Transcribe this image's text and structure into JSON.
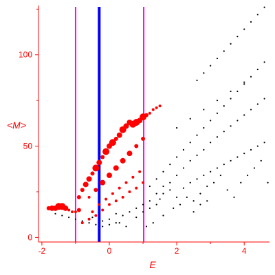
{
  "chart_data": {
    "type": "scatter",
    "title": "",
    "xlabel": "E",
    "ylabel": "<M>",
    "xlim": [
      -2.1,
      4.75
    ],
    "ylim": [
      -2.5,
      127
    ],
    "x_ticks": [
      -2,
      0,
      2,
      4
    ],
    "x_tick_labels": [
      "-2",
      "0",
      "2",
      "4"
    ],
    "y_ticks": [
      0,
      50,
      100
    ],
    "y_tick_labels": [
      "0",
      "50",
      "100"
    ],
    "axis_color": "#ff0000",
    "grid": false,
    "legend": "none",
    "vertical_lines": [
      {
        "x": -1.0,
        "color": "#ff00ff"
      },
      {
        "x": -0.3,
        "color": "#0000ff",
        "thick": true
      },
      {
        "x": 1.02,
        "color": "#ff00ff"
      }
    ],
    "series": [
      {
        "color": "#000000",
        "points": [
          [
            -0.5,
            11
          ],
          [
            -0.2,
            9
          ],
          [
            0.0,
            10
          ],
          [
            0.2,
            13
          ],
          [
            0.3,
            8
          ],
          [
            0.5,
            6
          ],
          [
            0.8,
            11
          ],
          [
            1.0,
            14
          ],
          [
            1.2,
            16
          ],
          [
            1.4,
            18
          ],
          [
            1.5,
            21
          ],
          [
            1.6,
            24
          ],
          [
            1.8,
            26
          ],
          [
            2.0,
            22
          ],
          [
            2.2,
            27
          ],
          [
            2.4,
            30
          ],
          [
            2.6,
            32
          ],
          [
            2.8,
            34
          ],
          [
            3.0,
            36
          ],
          [
            3.2,
            38
          ],
          [
            3.4,
            40
          ],
          [
            3.6,
            42
          ],
          [
            3.8,
            44
          ],
          [
            4.0,
            46
          ],
          [
            4.2,
            48
          ],
          [
            4.4,
            50
          ],
          [
            4.6,
            52
          ],
          [
            1.0,
            18
          ],
          [
            1.2,
            20
          ],
          [
            1.4,
            24
          ],
          [
            1.6,
            28
          ],
          [
            1.8,
            30
          ],
          [
            2.0,
            34
          ],
          [
            2.2,
            38
          ],
          [
            2.4,
            42
          ],
          [
            2.6,
            45
          ],
          [
            2.8,
            48
          ],
          [
            3.0,
            52
          ],
          [
            3.2,
            55
          ],
          [
            3.4,
            58
          ],
          [
            3.6,
            61
          ],
          [
            3.8,
            64
          ],
          [
            4.0,
            67
          ],
          [
            4.2,
            70
          ],
          [
            4.4,
            73
          ],
          [
            4.6,
            76
          ],
          [
            1.2,
            28
          ],
          [
            1.4,
            32
          ],
          [
            1.6,
            36
          ],
          [
            1.8,
            40
          ],
          [
            2.0,
            44
          ],
          [
            2.2,
            48
          ],
          [
            2.4,
            52
          ],
          [
            2.6,
            56
          ],
          [
            2.8,
            60
          ],
          [
            3.0,
            64
          ],
          [
            3.2,
            68
          ],
          [
            3.4,
            72
          ],
          [
            3.6,
            76
          ],
          [
            3.8,
            80
          ],
          [
            4.0,
            84
          ],
          [
            4.2,
            88
          ],
          [
            4.4,
            92
          ],
          [
            4.6,
            96
          ],
          [
            2.6,
            86
          ],
          [
            2.8,
            90
          ],
          [
            3.0,
            94
          ],
          [
            3.2,
            98
          ],
          [
            3.4,
            102
          ],
          [
            3.6,
            106
          ],
          [
            3.8,
            110
          ],
          [
            4.0,
            114
          ],
          [
            4.2,
            118
          ],
          [
            4.4,
            122
          ],
          [
            4.6,
            126
          ],
          [
            2.0,
            60
          ],
          [
            2.4,
            65
          ],
          [
            2.8,
            70
          ],
          [
            3.2,
            75
          ],
          [
            3.6,
            80
          ],
          [
            4.0,
            85
          ],
          [
            2.5,
            20
          ],
          [
            2.7,
            24
          ],
          [
            2.9,
            28
          ],
          [
            3.1,
            30
          ],
          [
            3.3,
            34
          ],
          [
            3.5,
            26
          ],
          [
            3.7,
            22
          ],
          [
            3.9,
            30
          ],
          [
            4.1,
            34
          ],
          [
            4.3,
            38
          ],
          [
            4.5,
            42
          ],
          [
            4.7,
            30
          ],
          [
            1.1,
            6
          ],
          [
            1.3,
            8
          ],
          [
            1.6,
            12
          ],
          [
            1.9,
            16
          ],
          [
            2.1,
            18
          ],
          [
            2.3,
            22
          ],
          [
            2.5,
            14
          ],
          [
            2.7,
            18
          ],
          [
            2.9,
            20
          ],
          [
            -1.6,
            13
          ],
          [
            -1.4,
            12
          ],
          [
            -1.2,
            11
          ],
          [
            -1.0,
            10
          ],
          [
            -0.8,
            9
          ],
          [
            -0.6,
            8
          ],
          [
            -0.4,
            7
          ],
          [
            -0.2,
            6
          ],
          [
            0.0,
            7
          ],
          [
            0.2,
            8
          ],
          [
            0.4,
            12
          ],
          [
            0.6,
            14
          ],
          [
            0.8,
            16
          ]
        ]
      },
      {
        "color": "#ff0000",
        "points": [
          [
            -1.8,
            16,
            3
          ],
          [
            -1.7,
            16,
            4
          ],
          [
            -1.6,
            16,
            4
          ],
          [
            -1.5,
            17,
            5
          ],
          [
            -1.4,
            17,
            5
          ],
          [
            -1.3,
            16,
            4
          ],
          [
            -1.2,
            15,
            2
          ],
          [
            -1.1,
            14,
            2
          ],
          [
            -1.0,
            14,
            2
          ],
          [
            -0.9,
            15,
            3
          ],
          [
            -0.9,
            22,
            3
          ],
          [
            -0.8,
            26,
            3
          ],
          [
            -0.7,
            29,
            4
          ],
          [
            -0.6,
            32,
            4
          ],
          [
            -0.5,
            35,
            3
          ],
          [
            -0.4,
            38,
            5
          ],
          [
            -0.3,
            41,
            4
          ],
          [
            -0.2,
            44,
            3
          ],
          [
            -0.1,
            47,
            5
          ],
          [
            0.0,
            50,
            4
          ],
          [
            0.1,
            52,
            5
          ],
          [
            0.2,
            54,
            3
          ],
          [
            0.3,
            56,
            4
          ],
          [
            0.4,
            59,
            5
          ],
          [
            0.5,
            61,
            4
          ],
          [
            0.6,
            63,
            4
          ],
          [
            0.7,
            62,
            5
          ],
          [
            0.8,
            63,
            5
          ],
          [
            0.9,
            64,
            4
          ],
          [
            1.0,
            66,
            5
          ],
          [
            1.1,
            67,
            3
          ],
          [
            1.2,
            68,
            2
          ],
          [
            1.3,
            70,
            2
          ],
          [
            1.4,
            71,
            2
          ],
          [
            1.5,
            72,
            2
          ],
          [
            -0.6,
            22,
            2
          ],
          [
            -0.4,
            26,
            3
          ],
          [
            -0.2,
            30,
            4
          ],
          [
            0.0,
            34,
            4
          ],
          [
            0.2,
            38,
            4
          ],
          [
            0.4,
            42,
            4
          ],
          [
            0.6,
            46,
            4
          ],
          [
            0.8,
            50,
            3
          ],
          [
            1.0,
            54,
            3
          ],
          [
            -0.5,
            14,
            2
          ],
          [
            -0.3,
            18,
            2
          ],
          [
            -0.1,
            21,
            2
          ],
          [
            0.1,
            24,
            2
          ],
          [
            0.3,
            27,
            2
          ],
          [
            0.5,
            30,
            2
          ],
          [
            0.7,
            33,
            2
          ],
          [
            0.9,
            36,
            2
          ],
          [
            -0.8,
            8,
            2
          ],
          [
            -0.6,
            10,
            2
          ],
          [
            -0.4,
            12,
            2
          ],
          [
            -0.2,
            15,
            2
          ],
          [
            0.0,
            18,
            2
          ],
          [
            0.2,
            20,
            2
          ],
          [
            0.4,
            22,
            2
          ],
          [
            0.6,
            25,
            2
          ],
          [
            0.8,
            27,
            2
          ],
          [
            1.0,
            30,
            2
          ]
        ]
      }
    ]
  }
}
